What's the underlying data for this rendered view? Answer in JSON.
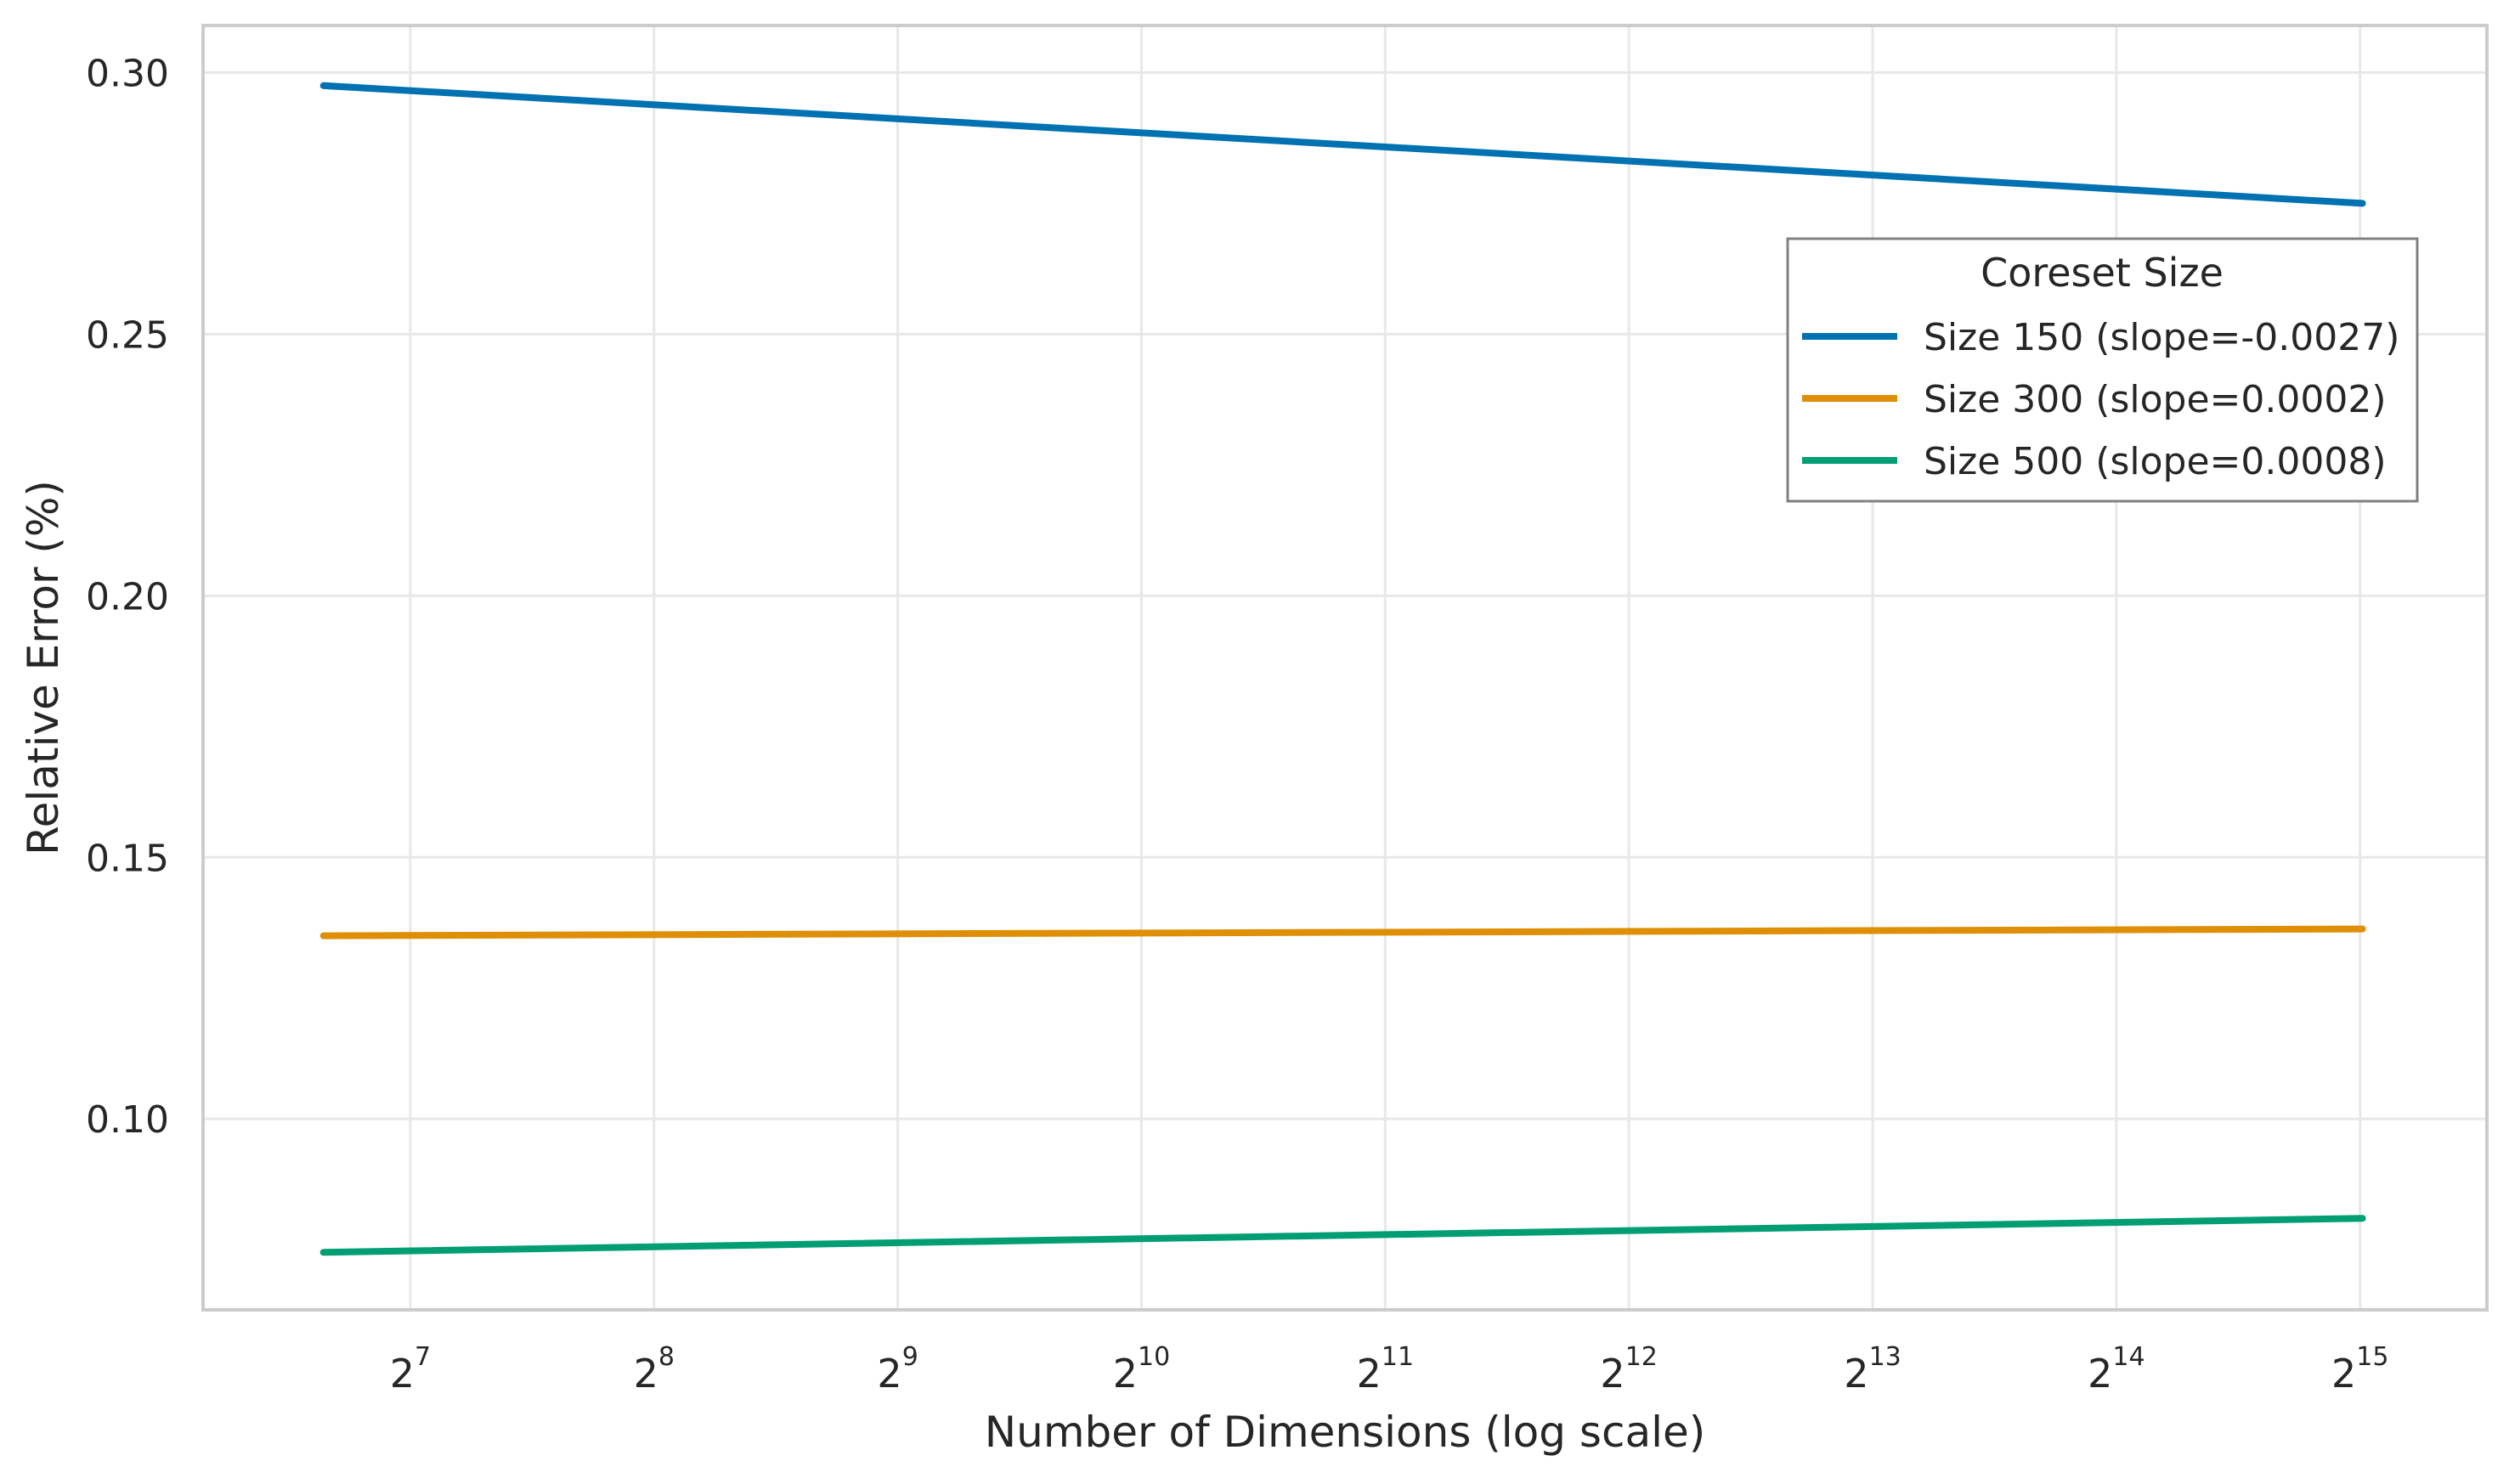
{
  "chart_data": {
    "type": "line",
    "title": "",
    "xlabel": "Number of Dimensions (log scale)",
    "ylabel": "Relative Error (%)",
    "x_scale": "log2",
    "xlim": [
      71,
      47000
    ],
    "ylim": [
      0.0635,
      0.309
    ],
    "x_ticks": [
      {
        "base": "2",
        "exp": "7",
        "value": 128
      },
      {
        "base": "2",
        "exp": "8",
        "value": 256
      },
      {
        "base": "2",
        "exp": "9",
        "value": 512
      },
      {
        "base": "2",
        "exp": "10",
        "value": 1024
      },
      {
        "base": "2",
        "exp": "11",
        "value": 2048
      },
      {
        "base": "2",
        "exp": "12",
        "value": 4096
      },
      {
        "base": "2",
        "exp": "13",
        "value": 8192
      },
      {
        "base": "2",
        "exp": "14",
        "value": 16384
      },
      {
        "base": "2",
        "exp": "15",
        "value": 32768
      }
    ],
    "y_ticks": [
      {
        "label": "0.10",
        "value": 0.1
      },
      {
        "label": "0.15",
        "value": 0.15
      },
      {
        "label": "0.20",
        "value": 0.2
      },
      {
        "label": "0.25",
        "value": 0.25
      },
      {
        "label": "0.30",
        "value": 0.3
      }
    ],
    "grid": true,
    "legend": {
      "title": "Coreset Size",
      "placement": "upper-right"
    },
    "series": [
      {
        "name": "Size 150 (slope=-0.0027)",
        "color": "#0072b2",
        "x": [
          100,
          33000
        ],
        "y": [
          0.2975,
          0.275
        ]
      },
      {
        "name": "Size 300 (slope=0.0002)",
        "color": "#de8f05",
        "x": [
          100,
          33000
        ],
        "y": [
          0.135,
          0.1363
        ]
      },
      {
        "name": "Size 500 (slope=0.0008)",
        "color": "#029e73",
        "x": [
          100,
          33000
        ],
        "y": [
          0.0745,
          0.081
        ]
      }
    ]
  }
}
